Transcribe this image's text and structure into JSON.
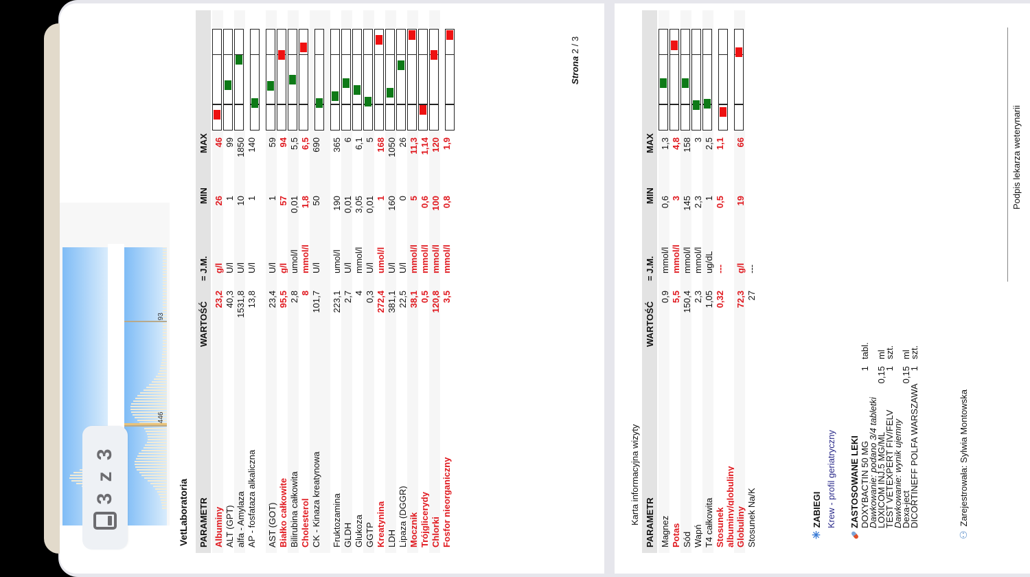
{
  "viewer": {
    "page_indicator": "3 z 3",
    "page_indicator_icon": "tablet-icon"
  },
  "page1": {
    "charts": {
      "hist2_labels": [
        "446",
        "93"
      ]
    },
    "lab_title": "VetLaboratoria",
    "headers": {
      "param": "PARAMETR",
      "value": "WARTOŚĆ",
      "eq": "=",
      "unit": "J.M.",
      "min": "MIN",
      "max": "MAX"
    },
    "rows": [
      {
        "name": "Albuminy",
        "value": "23,2",
        "unit": "g/l",
        "min": "26",
        "max": "46",
        "abnormal": true,
        "marker": 0.15,
        "status": "low"
      },
      {
        "name": "ALT (GPT)",
        "value": "40,3",
        "unit": "U/l",
        "min": "1",
        "max": "99",
        "abnormal": false,
        "marker": 0.45,
        "status": "ok"
      },
      {
        "name": "alfa - Amylaza",
        "value": "1531,8",
        "unit": "U/l",
        "min": "10",
        "max": "1850",
        "abnormal": false,
        "marker": 0.7,
        "status": "ok"
      },
      {
        "name": "AP - fosfataza alkaliczna",
        "value": "13,8",
        "unit": "U/l",
        "min": "1",
        "max": "140",
        "abnormal": false,
        "marker": 0.27,
        "status": "ok"
      },
      {
        "name": "AST (GOT)",
        "value": "23,4",
        "unit": "U/l",
        "min": "1",
        "max": "59",
        "abnormal": false,
        "marker": 0.44,
        "status": "ok"
      },
      {
        "name": "Białko całkowite",
        "value": "95,5",
        "unit": "g/l",
        "min": "57",
        "max": "94",
        "abnormal": true,
        "marker": 0.75,
        "status": "high"
      },
      {
        "name": "Bilirubina całkowita",
        "value": "2,8",
        "unit": "umol/l",
        "min": "0,01",
        "max": "5,5",
        "abnormal": false,
        "marker": 0.5,
        "status": "ok"
      },
      {
        "name": "Cholesterol",
        "value": "8",
        "unit": "mmol/l",
        "min": "1,8",
        "max": "6,5",
        "abnormal": true,
        "marker": 0.83,
        "status": "high"
      },
      {
        "name": "CK - Kinaza kreatynowa",
        "value": "101,7",
        "unit": "U/l",
        "min": "50",
        "max": "690",
        "abnormal": false,
        "marker": 0.27,
        "status": "ok"
      },
      {
        "name": "Fruktozamina",
        "value": "223,1",
        "unit": "umol/l",
        "min": "190",
        "max": "365",
        "abnormal": false,
        "marker": 0.34,
        "status": "ok"
      },
      {
        "name": "GLDH",
        "value": "2,7",
        "unit": "U/l",
        "min": "0,01",
        "max": "6",
        "abnormal": false,
        "marker": 0.47,
        "status": "ok"
      },
      {
        "name": "Glukoza",
        "value": "4",
        "unit": "mmol/l",
        "min": "3,05",
        "max": "6,1",
        "abnormal": false,
        "marker": 0.4,
        "status": "ok"
      },
      {
        "name": "GGTP",
        "value": "0,3",
        "unit": "U/l",
        "min": "0,01",
        "max": "5",
        "abnormal": false,
        "marker": 0.28,
        "status": "ok"
      },
      {
        "name": "Kreatynina",
        "value": "272,4",
        "unit": "umol/l",
        "min": "1",
        "max": "168",
        "abnormal": true,
        "marker": 0.9,
        "status": "high"
      },
      {
        "name": "LDH",
        "value": "381,1",
        "unit": "U/l",
        "min": "160",
        "max": "1050",
        "abnormal": false,
        "marker": 0.37,
        "status": "ok"
      },
      {
        "name": "Lipaza (DGGR)",
        "value": "22,5",
        "unit": "U/l",
        "min": "0",
        "max": "26",
        "abnormal": false,
        "marker": 0.65,
        "status": "ok"
      },
      {
        "name": "Mocznik",
        "value": "38,1",
        "unit": "mmol/l",
        "min": "5",
        "max": "11,3",
        "abnormal": true,
        "marker": 0.97,
        "status": "high"
      },
      {
        "name": "Trójglicerydy",
        "value": "0,5",
        "unit": "mmol/l",
        "min": "0,6",
        "max": "1,14",
        "abnormal": true,
        "marker": 0.2,
        "status": "low"
      },
      {
        "name": "Chlorki",
        "value": "120,8",
        "unit": "mmol/l",
        "min": "100",
        "max": "120",
        "abnormal": true,
        "marker": 0.75,
        "status": "high"
      },
      {
        "name": "Fosfor nieorganiczny",
        "value": "3,5",
        "unit": "mmol/l",
        "min": "0,8",
        "max": "1,9",
        "abnormal": true,
        "marker": 0.97,
        "status": "high"
      }
    ],
    "page_label": "Strona",
    "page_num": "2 / 3"
  },
  "page2": {
    "doc_title": "Karta informacyjna wizyty",
    "headers": {
      "param": "PARAMETR",
      "value": "WARTOŚĆ",
      "eq": "=",
      "unit": "J.M.",
      "min": "MIN",
      "max": "MAX"
    },
    "rows": [
      {
        "name": "Magnez",
        "value": "0,9",
        "unit": "mmol/l",
        "min": "0,6",
        "max": "1,3",
        "abnormal": false,
        "marker": 0.47,
        "status": "ok",
        "gauge": true
      },
      {
        "name": "Potas",
        "value": "5,5",
        "unit": "mmol/l",
        "min": "3",
        "max": "4,8",
        "abnormal": true,
        "marker": 0.85,
        "status": "high",
        "gauge": true
      },
      {
        "name": "Sód",
        "value": "150,4",
        "unit": "mmol/l",
        "min": "145",
        "max": "158",
        "abnormal": false,
        "marker": 0.47,
        "status": "ok",
        "gauge": true
      },
      {
        "name": "Wapń",
        "value": "2,3",
        "unit": "mmol/l",
        "min": "2,3",
        "max": "3",
        "abnormal": false,
        "marker": 0.25,
        "status": "ok",
        "gauge": true
      },
      {
        "name": "T4 całkowita",
        "value": "1,05",
        "unit": "ug/dL",
        "min": "1",
        "max": "2,5",
        "abnormal": false,
        "marker": 0.26,
        "status": "ok",
        "gauge": true
      },
      {
        "name": "Stosunek albuminy/globuliny",
        "value": "0,32",
        "unit": "---",
        "min": "0,5",
        "max": "1,1",
        "abnormal": true,
        "marker": 0.18,
        "status": "low",
        "gauge": true
      },
      {
        "name": "Globuliny",
        "value": "72,3",
        "unit": "g/l",
        "min": "19",
        "max": "66",
        "abnormal": true,
        "marker": 0.78,
        "status": "high",
        "gauge": true
      },
      {
        "name": "Stosunek Na/K",
        "value": "27",
        "unit": "---",
        "min": "",
        "max": "",
        "abnormal": false,
        "gauge": false
      }
    ],
    "procedures": {
      "title": "ZABIEGI",
      "icon": "asterisk-icon",
      "items": [
        "Krew - profil geriatryczny"
      ]
    },
    "medications": {
      "title": "ZASTOSOWANE LEKI",
      "icon": "pill-icon",
      "items": [
        {
          "name": "DOXYBACTIN 50 MG",
          "qty": "1",
          "unit": "tabl.",
          "dosage_label": "Dawkowanie:",
          "dosage": "podano 3/4 tabletki"
        },
        {
          "name": "LOXICOM INJ.5 MG/ML",
          "qty": "0,15",
          "unit": "ml"
        },
        {
          "name": "TEST VETEXPERT FIV/FELV",
          "qty": "1",
          "unit": "szt.",
          "dosage_label": "Dawkowanie:",
          "dosage": "wynik ujemny"
        },
        {
          "name": "Dexa-ject",
          "qty": "0,15",
          "unit": "ml"
        },
        {
          "name": "DICORTINEFF POLFA WARSZAWA",
          "qty": "1",
          "unit": "szt."
        }
      ]
    },
    "registered_by": "Zarejestrowała: Sylwia Montowska",
    "signature_label": "Podpis lekarza weterynarii"
  }
}
